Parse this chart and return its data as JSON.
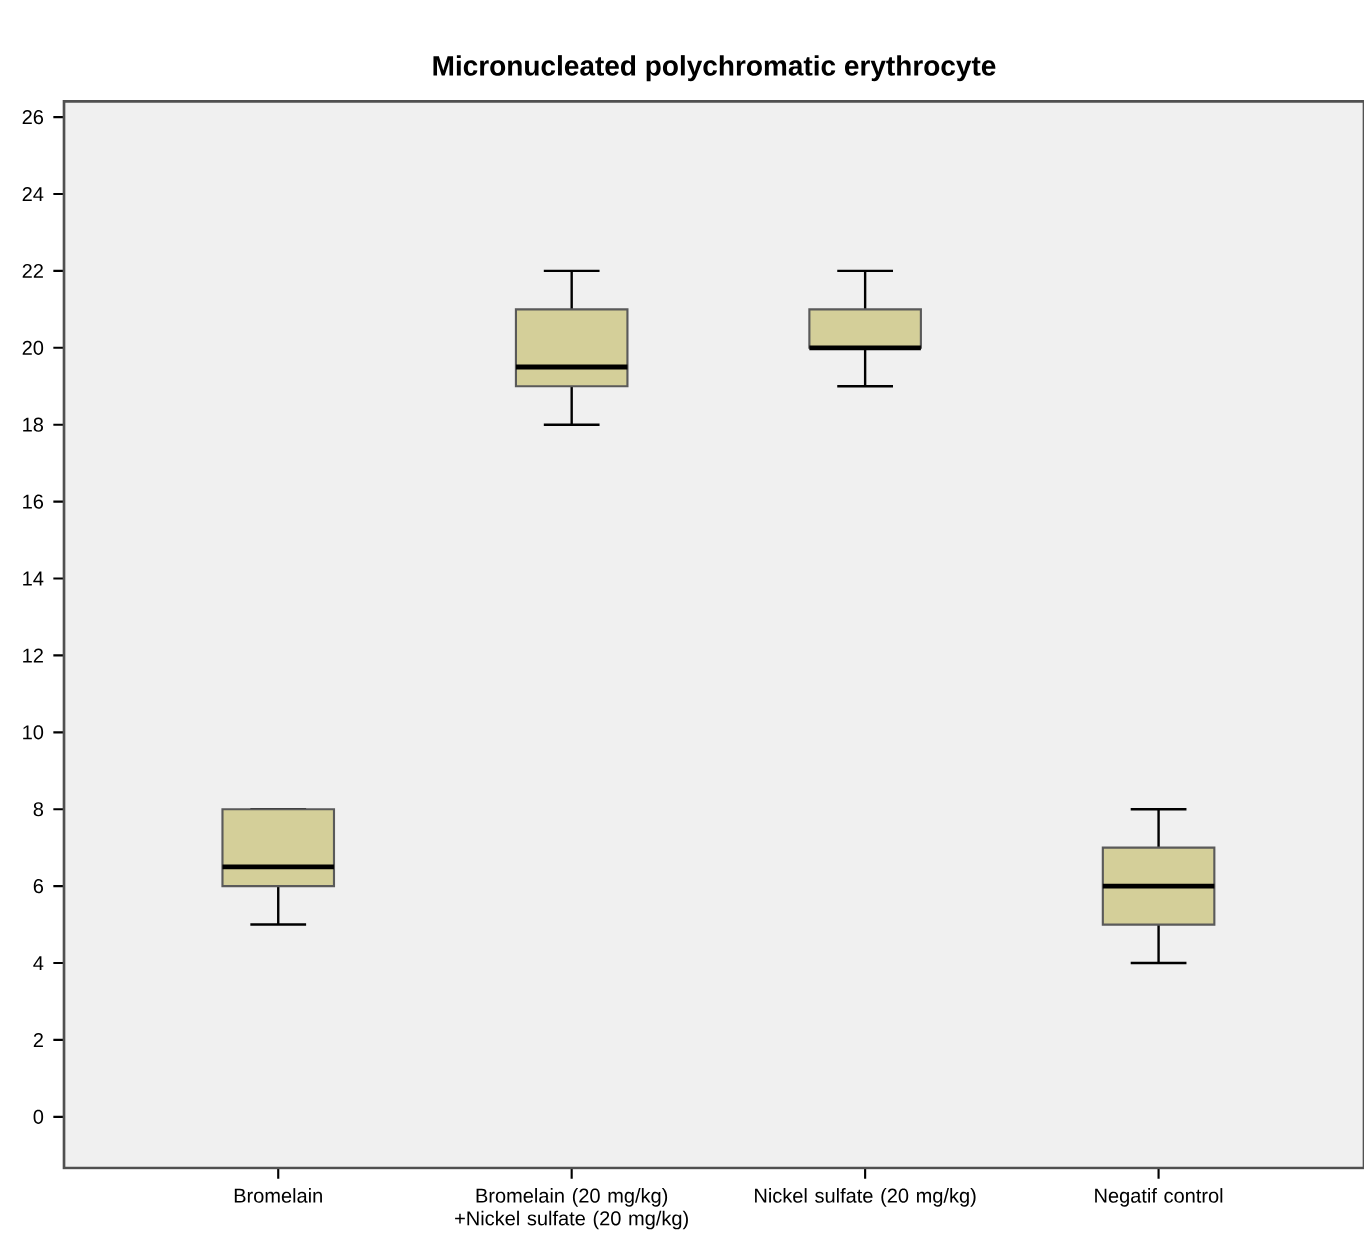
{
  "chart_data": {
    "type": "box",
    "title": "Micronucleated polychromatic erythrocyte",
    "categories": [
      "Bromelain",
      "Bromelain (20 mg/kg) +Nickel sulfate (20 mg/kg)",
      "Nickel sulfate (20 mg/kg)",
      "Negatif control"
    ],
    "boxes": [
      {
        "low": 5,
        "q1": 6,
        "median": 6.5,
        "q3": 8,
        "high": 8
      },
      {
        "low": 18,
        "q1": 19,
        "median": 19.5,
        "q3": 21,
        "high": 22
      },
      {
        "low": 19,
        "q1": 20,
        "median": 20,
        "q3": 21,
        "high": 22
      },
      {
        "low": 4,
        "q1": 5,
        "median": 6,
        "q3": 7,
        "high": 8
      }
    ],
    "color": "#d4cf99",
    "ylim": [
      -1.33,
      26.41
    ],
    "yticks": [
      0,
      2,
      4,
      6,
      8,
      10,
      12,
      14,
      16,
      18,
      20,
      22,
      24,
      26
    ]
  }
}
